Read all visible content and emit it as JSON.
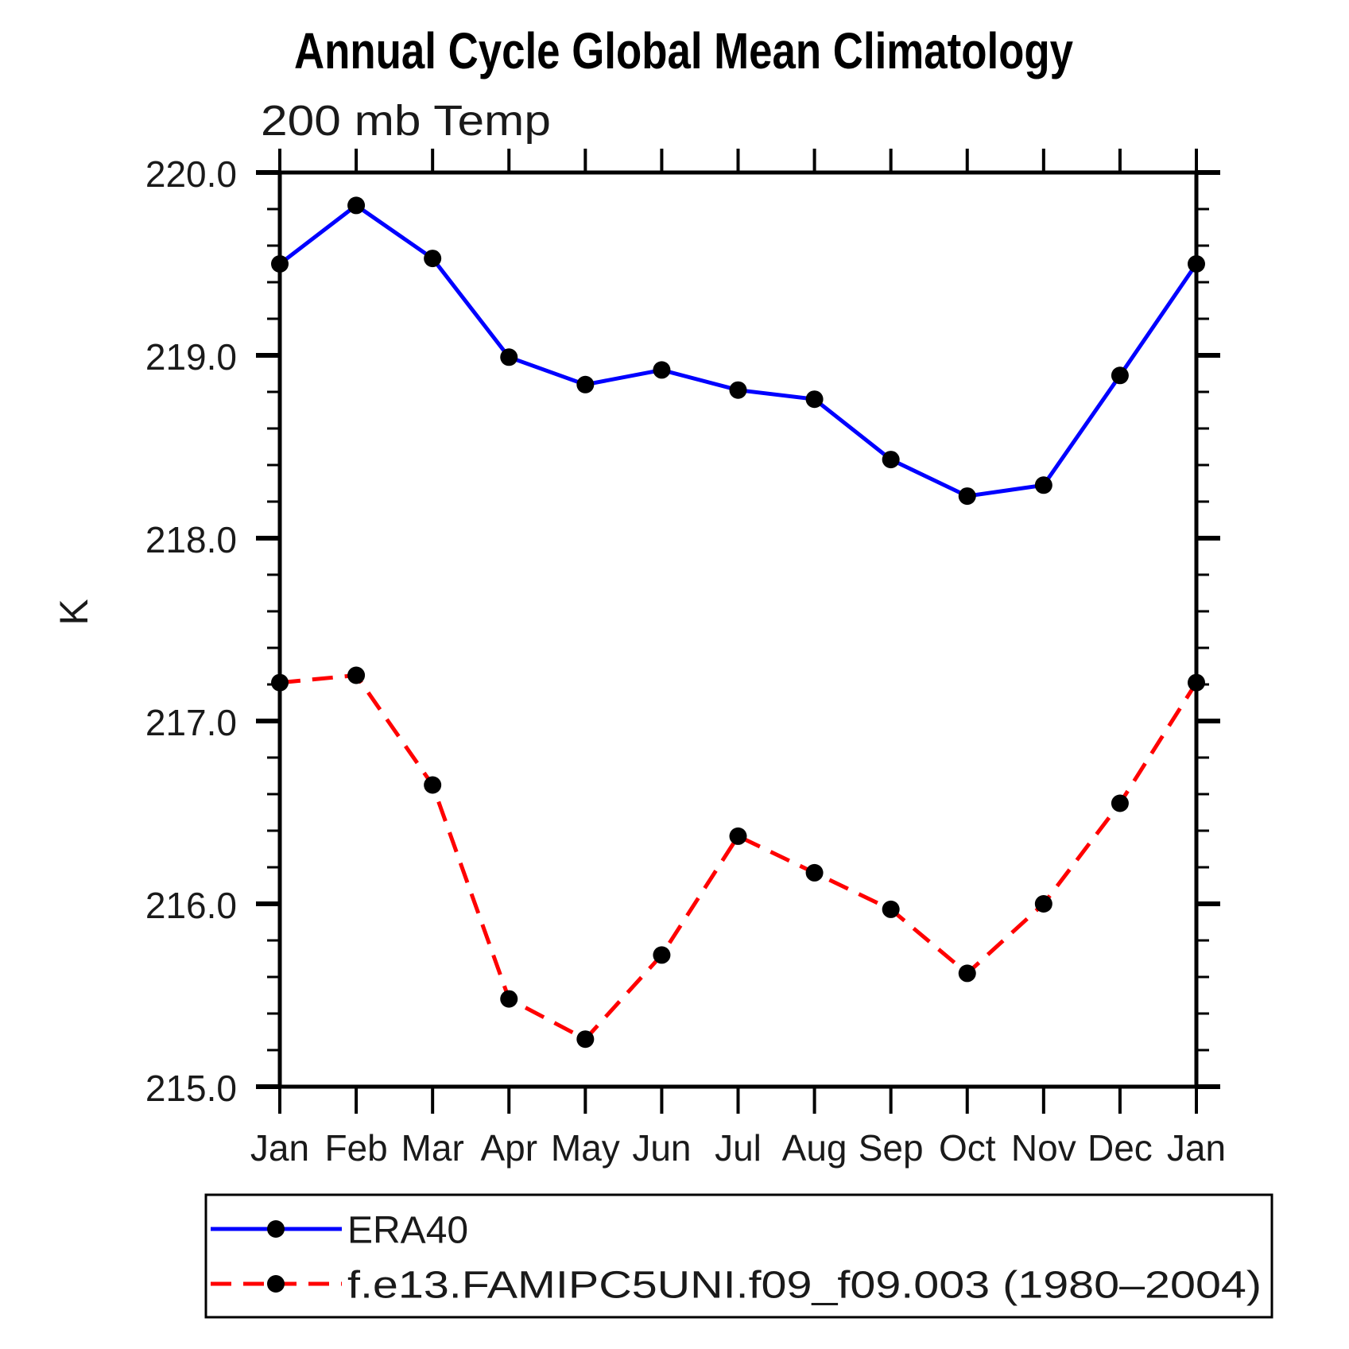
{
  "page": {
    "background": "#ffffff"
  },
  "chart_data": {
    "type": "line",
    "title": "Annual Cycle Global Mean Climatology",
    "subtitle": "200 mb Temp",
    "ylabel": "K",
    "x_categories": [
      "Jan",
      "Feb",
      "Mar",
      "Apr",
      "May",
      "Jun",
      "Jul",
      "Aug",
      "Sep",
      "Oct",
      "Nov",
      "Dec",
      "Jan"
    ],
    "ylim": [
      215.0,
      220.0
    ],
    "y_major_tick_labels": [
      "220.0",
      "219.0",
      "218.0",
      "217.0",
      "216.0",
      "215.0"
    ],
    "y_minor_step": 0.2,
    "grid": false,
    "legend_position": "bottom-left",
    "frame_color": "#000000",
    "series": [
      {
        "name": "ERA40",
        "line_color": "#0000ff",
        "line_style": "solid",
        "marker": "filled-circle",
        "marker_color": "#000000",
        "values": [
          219.5,
          219.82,
          219.53,
          218.99,
          218.84,
          218.92,
          218.81,
          218.76,
          218.43,
          218.23,
          218.29,
          218.89,
          219.5
        ]
      },
      {
        "name": "f.e13.FAMIPC5UNI.f09_f09.003 (1980–2004)",
        "line_color": "#ff0000",
        "line_style": "dashed",
        "marker": "filled-circle",
        "marker_color": "#000000",
        "values": [
          217.21,
          217.25,
          216.65,
          215.48,
          215.26,
          215.72,
          216.37,
          216.17,
          215.97,
          215.62,
          216.0,
          216.55,
          217.21
        ]
      }
    ]
  }
}
